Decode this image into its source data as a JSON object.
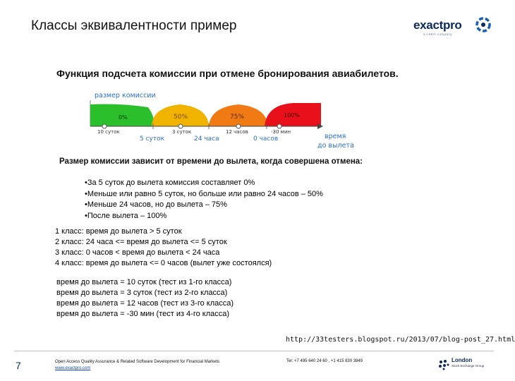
{
  "header": {
    "title": "Классы эквивалентности пример",
    "logo_text": "exactpro",
    "logo_tagline": "a LSEG company"
  },
  "subtitle": {
    "text": "Функция подсчета комиссии при отмене бронирования авиабилетов.",
    "trailing": " "
  },
  "diagram": {
    "axis_title": "размер комиссии",
    "zones": [
      {
        "label": "0%",
        "color": "#2bbf2b"
      },
      {
        "label": "50%",
        "color": "#f0b400"
      },
      {
        "label": "75%",
        "color": "#f07a14"
      },
      {
        "label": "100%",
        "color": "#e8101a"
      }
    ],
    "points": [
      "10 суток",
      "3 суток",
      "12 часов",
      "-30 мин"
    ],
    "boundaries": [
      "5 суток",
      "24 часа",
      "0 часов"
    ],
    "x_title_1": "время",
    "x_title_2": "до вылета"
  },
  "description": "Размер комиссии зависит от времени до вылета, когда совершена отмена:",
  "bullets": [
    "•За 5 суток до вылета комиссия составляет 0%",
    "•Меньше или равно 5 суток, но больше или равно 24 часов – 50%",
    "•Меньше 24 часов, но до вылета – 75%",
    "•После вылета – 100%"
  ],
  "classes": [
    "1 класс: время до вылета > 5 суток",
    "2 класс: 24 часа <= время до вылета <= 5 суток",
    "3 класс: 0 часов < время до вылета < 24 часа",
    "4 класс: время до вылета <= 0 часов (вылет уже состоялся)"
  ],
  "tests": [
    "время до вылета = 10 суток (тест из 1-го класса)",
    "время до вылета = 3 суток (тест из 2-го класса)",
    "время до вылета = 12 часов (тест из 3-го класса)",
    "время до вылета = -30 мин (тест из 4-го класса)"
  ],
  "source_url": "http://33testers.blogspot.ru/2013/07/blog-post_27.html",
  "footer": {
    "page_number": "7",
    "company_line": "Open Access Quality Assurance & Related Software Development for Financial Markets",
    "website": "www.exactpro.com",
    "phones": "Tel: +7 495 640 24 60 , +1 415 830 3849",
    "lse_name": "London",
    "lse_sub": "Stock Exchange Group"
  }
}
